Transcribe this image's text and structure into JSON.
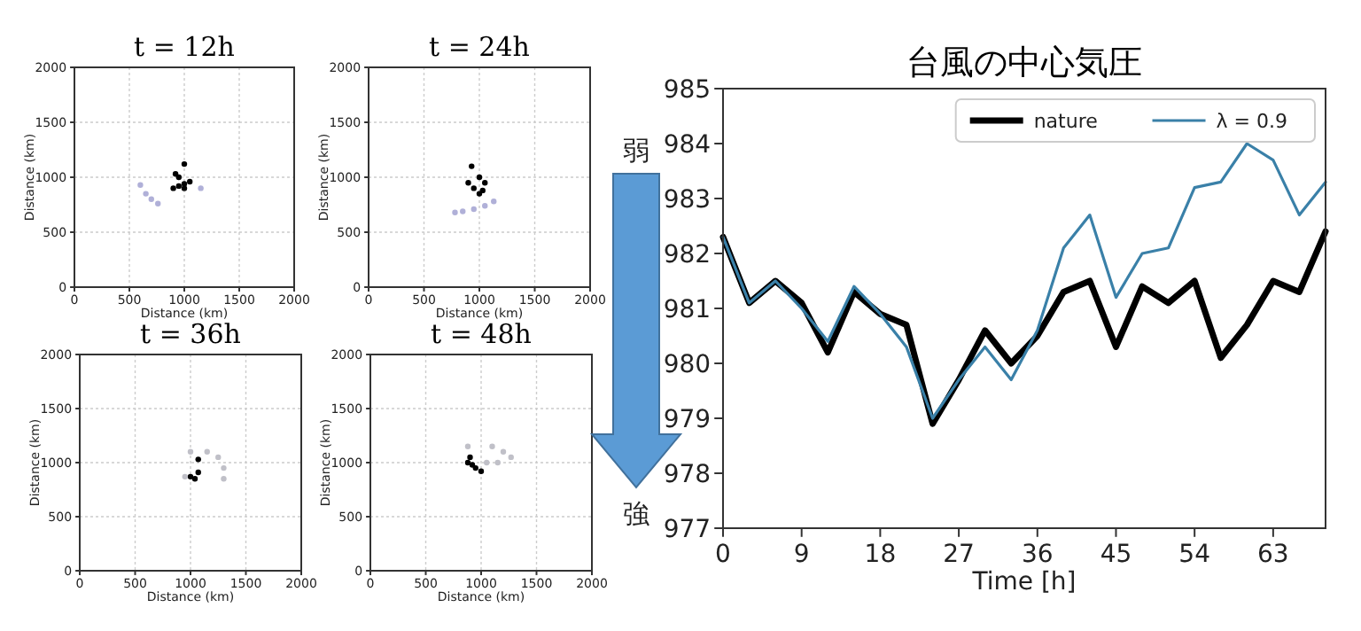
{
  "chart_data": [
    {
      "type": "scatter",
      "title": "t = 12h",
      "xlabel": "Distance (km)",
      "ylabel": "Distance (km)",
      "xlim": [
        0,
        2000
      ],
      "ylim": [
        0,
        2000
      ],
      "xticks": [
        0,
        500,
        1000,
        1500,
        2000
      ],
      "yticks": [
        0,
        500,
        1000,
        1500,
        2000
      ],
      "grid": true,
      "marker": "circle",
      "series": [
        {
          "color": "#000000",
          "x": [
            900,
            950,
            1000,
            1050,
            1000,
            920,
            950,
            1000
          ],
          "values": [
            900,
            920,
            940,
            960,
            900,
            1030,
            1000,
            1120
          ]
        },
        {
          "color": "#b0b0d8",
          "x": [
            600,
            650,
            700,
            760,
            1150
          ],
          "values": [
            930,
            850,
            800,
            760,
            900
          ]
        }
      ]
    },
    {
      "type": "scatter",
      "title": "t = 24h",
      "xlabel": "Distance (km)",
      "ylabel": "Distance (km)",
      "xlim": [
        0,
        2000
      ],
      "ylim": [
        0,
        2000
      ],
      "xticks": [
        0,
        500,
        1000,
        1500,
        2000
      ],
      "yticks": [
        0,
        500,
        1000,
        1500,
        2000
      ],
      "grid": true,
      "marker": "circle",
      "series": [
        {
          "color": "#000000",
          "x": [
            930,
            900,
            950,
            1000,
            1030,
            1050,
            1000
          ],
          "values": [
            1100,
            950,
            900,
            850,
            880,
            950,
            1000
          ]
        },
        {
          "color": "#b0b0d8",
          "x": [
            780,
            850,
            950,
            1050,
            1130
          ],
          "values": [
            680,
            690,
            710,
            740,
            780
          ]
        }
      ]
    },
    {
      "type": "scatter",
      "title": "t = 36h",
      "xlabel": "Distance (km)",
      "ylabel": "Distance (km)",
      "xlim": [
        0,
        2000
      ],
      "ylim": [
        0,
        2000
      ],
      "xticks": [
        0,
        500,
        1000,
        1500,
        2000
      ],
      "yticks": [
        0,
        500,
        1000,
        1500,
        2000
      ],
      "grid": true,
      "marker": "circle",
      "series": [
        {
          "color": "#000000",
          "x": [
            1040,
            1070,
            1070,
            1000
          ],
          "values": [
            850,
            910,
            1030,
            870
          ]
        },
        {
          "color": "#c0c0c8",
          "x": [
            1000,
            1150,
            1250,
            1300,
            1300,
            950
          ],
          "values": [
            1100,
            1100,
            1050,
            950,
            850,
            870
          ]
        }
      ]
    },
    {
      "type": "scatter",
      "title": "t = 48h",
      "xlabel": "Distance (km)",
      "ylabel": "Distance (km)",
      "xlim": [
        0,
        2000
      ],
      "ylim": [
        0,
        2000
      ],
      "xticks": [
        0,
        500,
        1000,
        1500,
        2000
      ],
      "yticks": [
        0,
        500,
        1000,
        1500,
        2000
      ],
      "grid": true,
      "marker": "circle",
      "series": [
        {
          "color": "#000000",
          "x": [
            900,
            920,
            950,
            1000,
            880
          ],
          "values": [
            1050,
            980,
            950,
            920,
            1000
          ]
        },
        {
          "color": "#c0c0c8",
          "x": [
            880,
            1100,
            1200,
            1270,
            1150,
            1050
          ],
          "values": [
            1150,
            1150,
            1100,
            1050,
            1000,
            1000
          ]
        }
      ]
    },
    {
      "type": "line",
      "title": "台風の中心気圧",
      "xlabel": "Time [h]",
      "xlim": [
        0,
        69
      ],
      "ylim": [
        977,
        985
      ],
      "xticks": [
        0,
        9,
        18,
        27,
        36,
        45,
        54,
        63
      ],
      "yticks": [
        977,
        978,
        979,
        980,
        981,
        982,
        983,
        984,
        985
      ],
      "grid": false,
      "legend": "top right",
      "annotations": [
        "弱",
        "強"
      ],
      "x": [
        0,
        3,
        6,
        9,
        12,
        15,
        18,
        21,
        24,
        27,
        30,
        33,
        36,
        39,
        42,
        45,
        48,
        51,
        54,
        57,
        60,
        63,
        66,
        69
      ],
      "series": [
        {
          "name": "nature",
          "color": "#000000",
          "values": [
            982.3,
            981.1,
            981.5,
            981.1,
            980.2,
            981.3,
            980.9,
            980.7,
            978.9,
            979.7,
            980.6,
            980.0,
            980.5,
            981.3,
            981.5,
            980.3,
            981.4,
            981.1,
            981.5,
            980.1,
            980.7,
            981.5,
            981.3,
            982.4
          ]
        },
        {
          "name": "λ = 0.9",
          "color": "#3a80a8",
          "values": [
            982.3,
            981.1,
            981.5,
            981.0,
            980.4,
            981.4,
            980.9,
            980.3,
            979.0,
            979.7,
            980.3,
            979.7,
            980.6,
            982.1,
            982.7,
            981.2,
            982.0,
            982.1,
            983.2,
            983.3,
            984.0,
            983.7,
            982.7,
            983.3
          ]
        }
      ]
    }
  ]
}
